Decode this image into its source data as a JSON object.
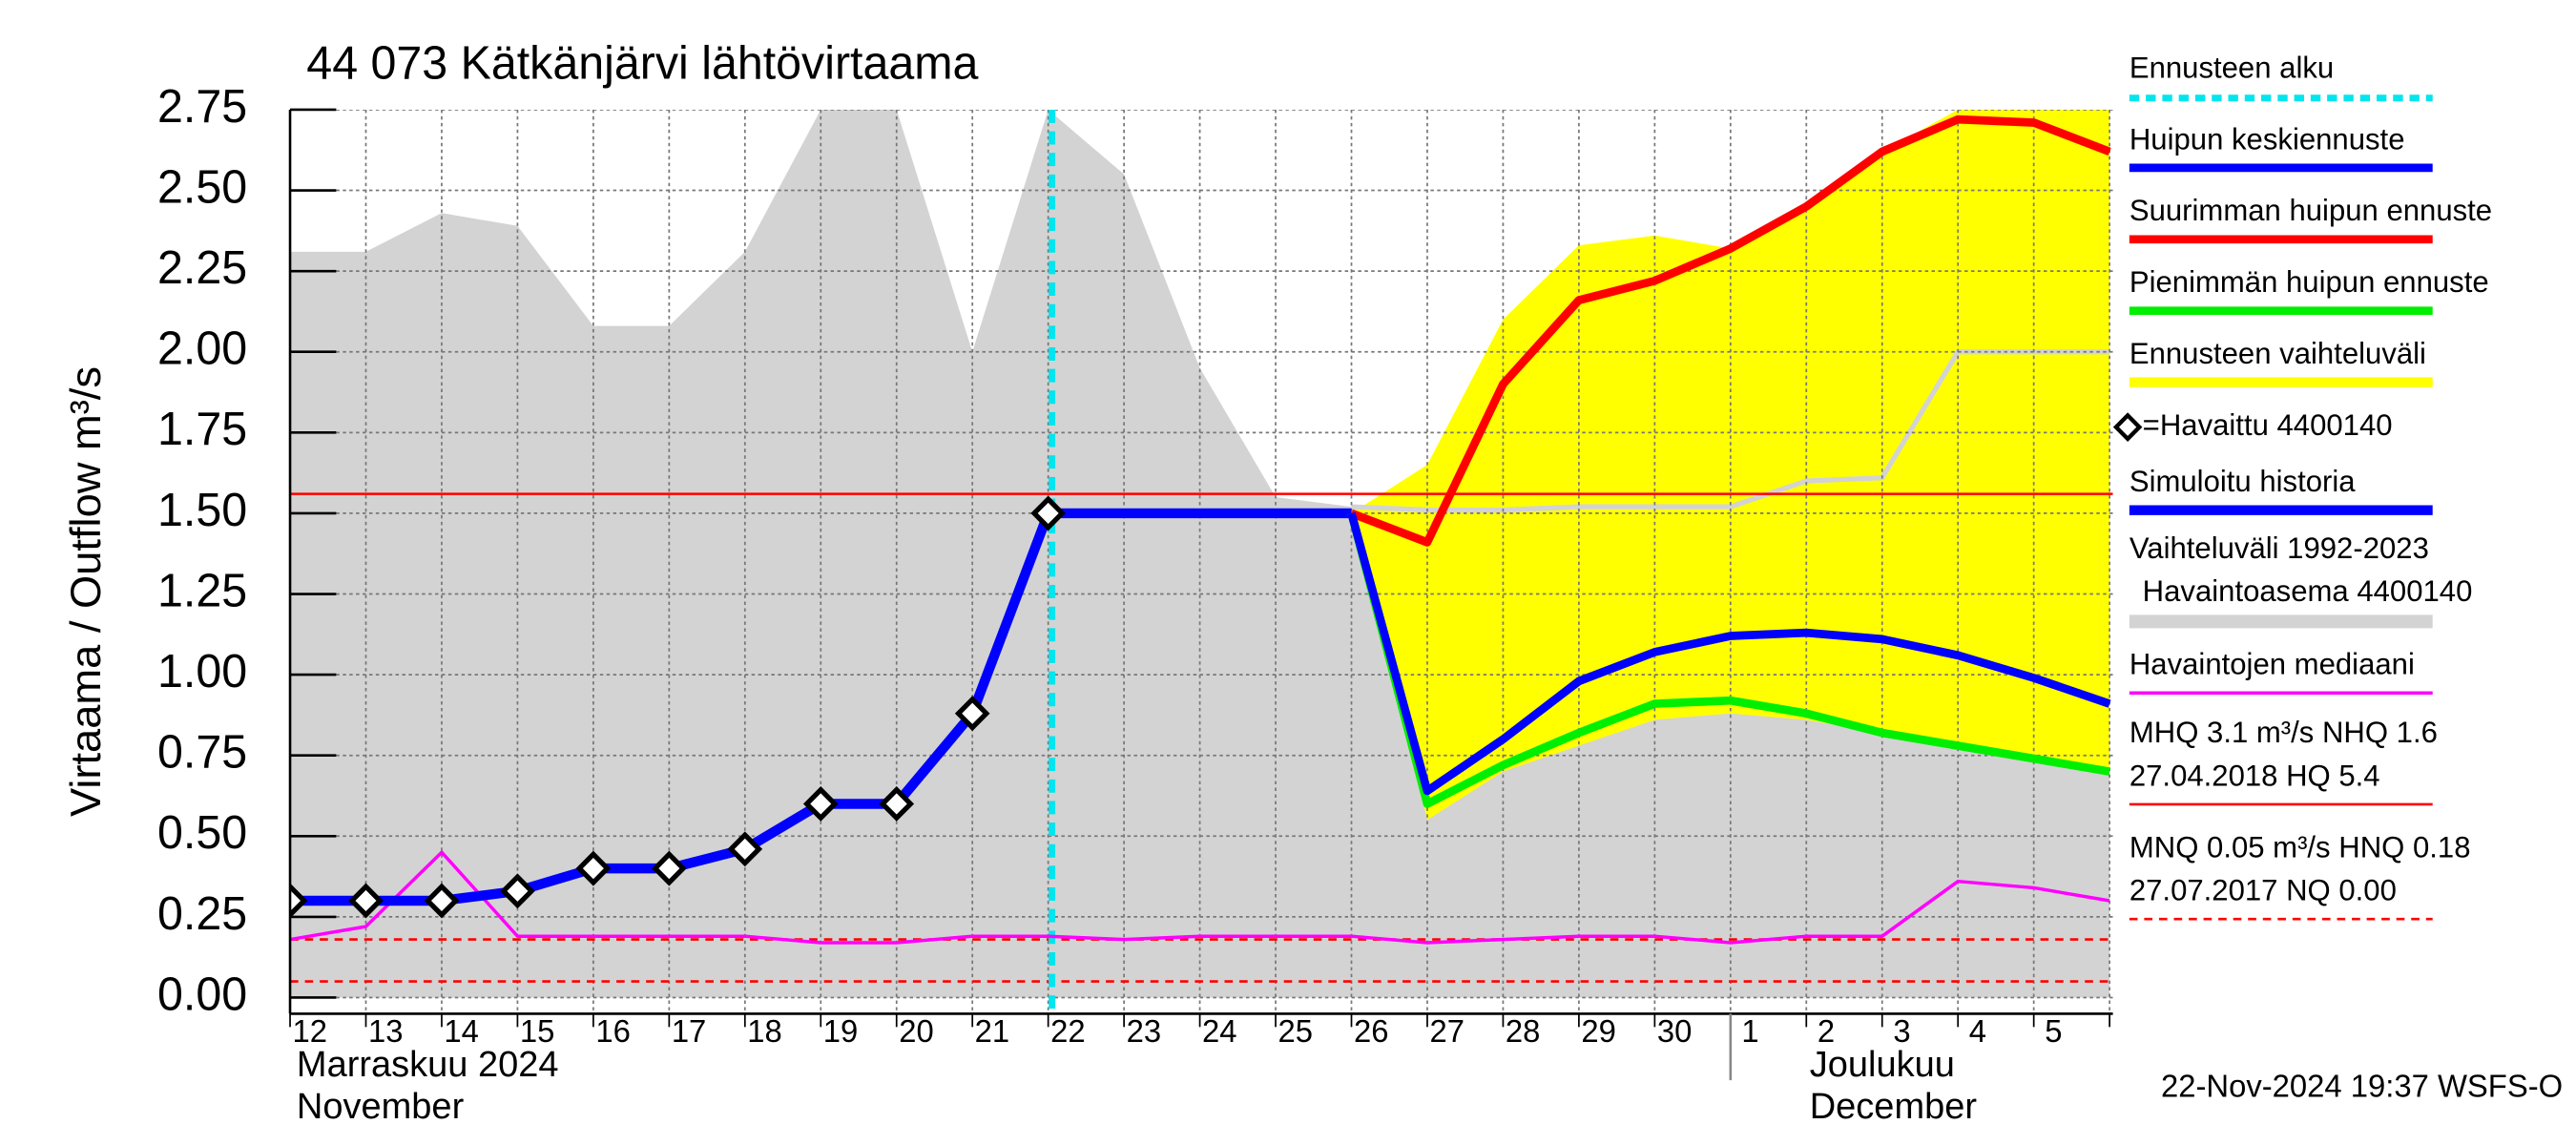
{
  "chart_data": {
    "type": "line",
    "title": "44 073 Kätkänjärvi lähtövirtaama",
    "y_label": "Virtaama / Outflow    m³/s",
    "timestamp": "22-Nov-2024 19:37 WSFS-O",
    "categories": [
      "12",
      "13",
      "14",
      "15",
      "16",
      "17",
      "18",
      "19",
      "20",
      "21",
      "22",
      "23",
      "24",
      "25",
      "26",
      "27",
      "28",
      "29",
      "30",
      "1",
      "2",
      "3",
      "4",
      "5",
      null
    ],
    "xlim": [
      0,
      24
    ],
    "ylim": [
      -0.05,
      2.75
    ],
    "yticks": [
      {
        "value": 0,
        "label": "0.00"
      },
      {
        "value": 0.25,
        "label": "0.25"
      },
      {
        "value": 0.5,
        "label": "0.50"
      },
      {
        "value": 0.75,
        "label": "0.75"
      },
      {
        "value": 1,
        "label": "1.00"
      },
      {
        "value": 1.25,
        "label": "1.25"
      },
      {
        "value": 1.5,
        "label": "1.50"
      },
      {
        "value": 1.75,
        "label": "1.75"
      },
      {
        "value": 2,
        "label": "2.00"
      },
      {
        "value": 2.25,
        "label": "2.25"
      },
      {
        "value": 2.5,
        "label": "2.50"
      },
      {
        "value": 2.75,
        "label": "2.75"
      }
    ],
    "grid": true,
    "months": [
      {
        "label": [
          "Marraskuu 2024",
          "November"
        ],
        "x": 0
      },
      {
        "label": [
          "Joulukuu",
          "December"
        ],
        "x": 19
      }
    ],
    "forecast_start": {
      "name": "Ennusteen alku",
      "color": "#00e5ee",
      "x": 10.05
    },
    "bands": [
      {
        "name": [
          "Vaihteluväli 1992-2023",
          "Havaintoasema 4400140"
        ],
        "color": "#d3d3d3",
        "upper": [
          2.31,
          2.31,
          2.43,
          2.39,
          2.08,
          2.08,
          2.31,
          2.75,
          2.75,
          2.0,
          2.75,
          2.55,
          1.95,
          1.55,
          1.52,
          1.51,
          1.51,
          1.52,
          1.52,
          1.52,
          1.6,
          1.61,
          2.0,
          2.0,
          2.0
        ],
        "lower": [
          0,
          0,
          0,
          0,
          0,
          0,
          0,
          0,
          0,
          0,
          0,
          0,
          0,
          0,
          0,
          0,
          0,
          0,
          0,
          0,
          0,
          0,
          0,
          0,
          0
        ]
      },
      {
        "name": [
          "Ennusteen vaihteluväli"
        ],
        "color": "#ffff00",
        "upper": [
          null,
          null,
          null,
          null,
          null,
          null,
          null,
          null,
          null,
          null,
          null,
          null,
          null,
          null,
          1.5,
          1.65,
          2.1,
          2.33,
          2.36,
          2.32,
          2.45,
          2.62,
          2.75,
          2.75,
          2.75
        ],
        "lower": [
          null,
          null,
          null,
          null,
          null,
          null,
          null,
          null,
          null,
          null,
          null,
          null,
          null,
          null,
          1.5,
          0.55,
          0.7,
          0.78,
          0.86,
          0.88,
          0.86,
          0.82,
          0.78,
          0.74,
          0.7
        ]
      }
    ],
    "series": [
      {
        "name": "Havaintojen mediaani",
        "color": "#ff00ff",
        "width": 2,
        "values": [
          0.18,
          0.22,
          0.45,
          0.19,
          0.19,
          0.19,
          0.19,
          0.17,
          0.17,
          0.19,
          0.19,
          0.18,
          0.19,
          0.19,
          0.19,
          0.17,
          0.18,
          0.19,
          0.19,
          0.17,
          0.19,
          0.19,
          0.36,
          0.34,
          0.3
        ]
      },
      {
        "name": "Simuloitu historia",
        "color": "#0000ff",
        "width": 6,
        "values": [
          0.3,
          0.3,
          0.3,
          0.33,
          0.4,
          0.4,
          0.46,
          0.6,
          0.6,
          0.88,
          1.5,
          1.5,
          1.5,
          1.5,
          1.5,
          null,
          null,
          null,
          null,
          null,
          null,
          null,
          null,
          null,
          null
        ]
      },
      {
        "name": "Pienimmän huipun ennuste",
        "color": "#00ee00",
        "width": 5,
        "values": [
          null,
          null,
          null,
          null,
          null,
          null,
          null,
          null,
          null,
          null,
          null,
          null,
          null,
          null,
          1.5,
          0.6,
          0.72,
          0.82,
          0.91,
          0.92,
          0.88,
          0.82,
          0.78,
          0.74,
          0.7
        ]
      },
      {
        "name": "Suurimman huipun ennuste",
        "color": "#ff0000",
        "width": 5,
        "values": [
          null,
          null,
          null,
          null,
          null,
          null,
          null,
          null,
          null,
          null,
          null,
          null,
          null,
          null,
          1.5,
          1.41,
          1.9,
          2.16,
          2.22,
          2.32,
          2.45,
          2.62,
          2.72,
          2.71,
          2.62
        ]
      },
      {
        "name": "Huipun keskiennuste",
        "color": "#0000ff",
        "width": 5,
        "values": [
          null,
          null,
          null,
          null,
          null,
          null,
          null,
          null,
          null,
          null,
          null,
          null,
          null,
          null,
          1.5,
          0.64,
          0.8,
          0.98,
          1.07,
          1.12,
          1.13,
          1.11,
          1.06,
          0.99,
          0.91
        ]
      },
      {
        "name": "=Havaittu 4400140",
        "color": "#000000",
        "marker": "diamond",
        "values": [
          0.3,
          0.3,
          0.3,
          0.33,
          0.4,
          0.4,
          0.46,
          0.6,
          0.6,
          0.88,
          1.5,
          null,
          null,
          null,
          null,
          null,
          null,
          null,
          null,
          null,
          null,
          null,
          null,
          null,
          null
        ]
      }
    ],
    "reference_lines": [
      {
        "label": [
          "MHQ  3.1 m³/s NHQ  1.6",
          "27.04.2018 HQ  5.4"
        ],
        "color": "#ff0000",
        "style": "solid",
        "values": [
          1.56
        ]
      },
      {
        "label": [
          "MNQ 0.05 m³/s HNQ 0.18",
          "27.07.2017 NQ 0.00"
        ],
        "color": "#ff0000",
        "style": "dashed",
        "values": [
          0.18,
          0.05
        ]
      }
    ]
  }
}
